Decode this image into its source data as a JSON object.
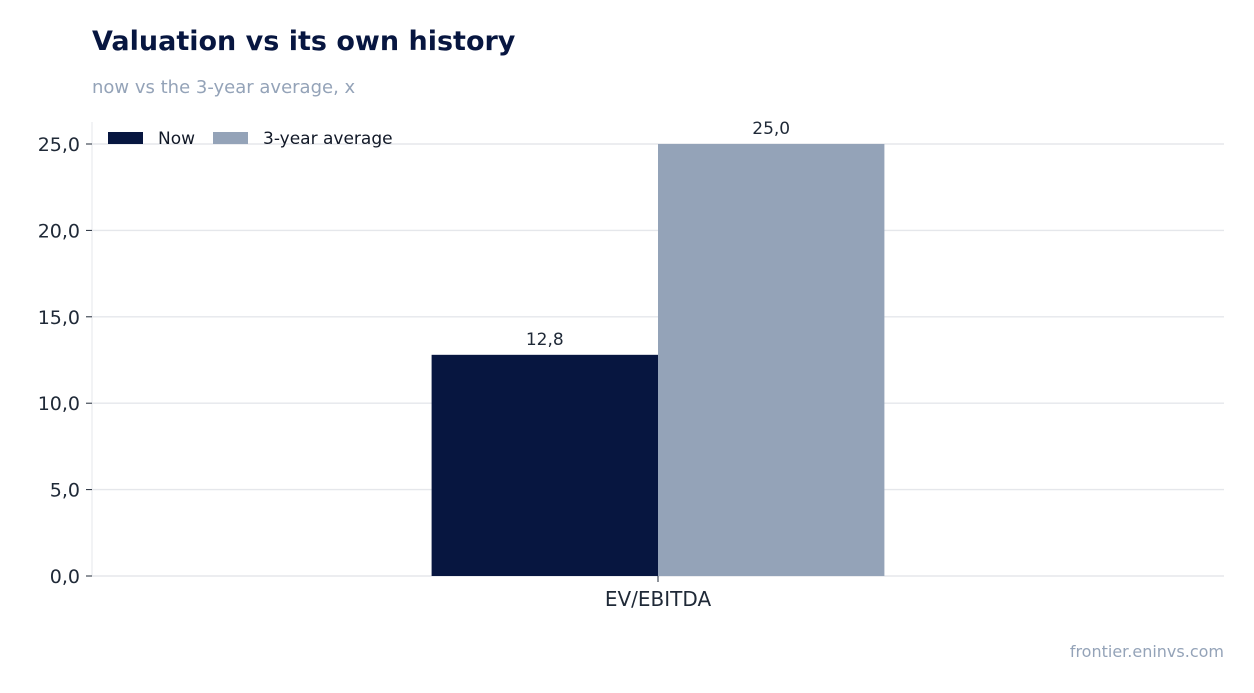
{
  "title": "Valuation vs its own history",
  "subtitle": "now vs the 3-year average, x",
  "source": "frontier.eninvs.com",
  "chart_data": {
    "type": "bar",
    "categories": [
      "EV/EBITDA"
    ],
    "series": [
      {
        "name": "Now",
        "values": [
          12.8
        ],
        "color": "#071640"
      },
      {
        "name": "3-year average",
        "values": [
          25.0
        ],
        "color": "#94a3b8"
      }
    ],
    "ylim": [
      0,
      25
    ],
    "yticks": [
      "0,0",
      "5,0",
      "10,0",
      "15,0",
      "20,0",
      "25,0"
    ],
    "data_labels": [
      "12,8",
      "25,0"
    ],
    "grid": true,
    "legend": "top-left"
  }
}
